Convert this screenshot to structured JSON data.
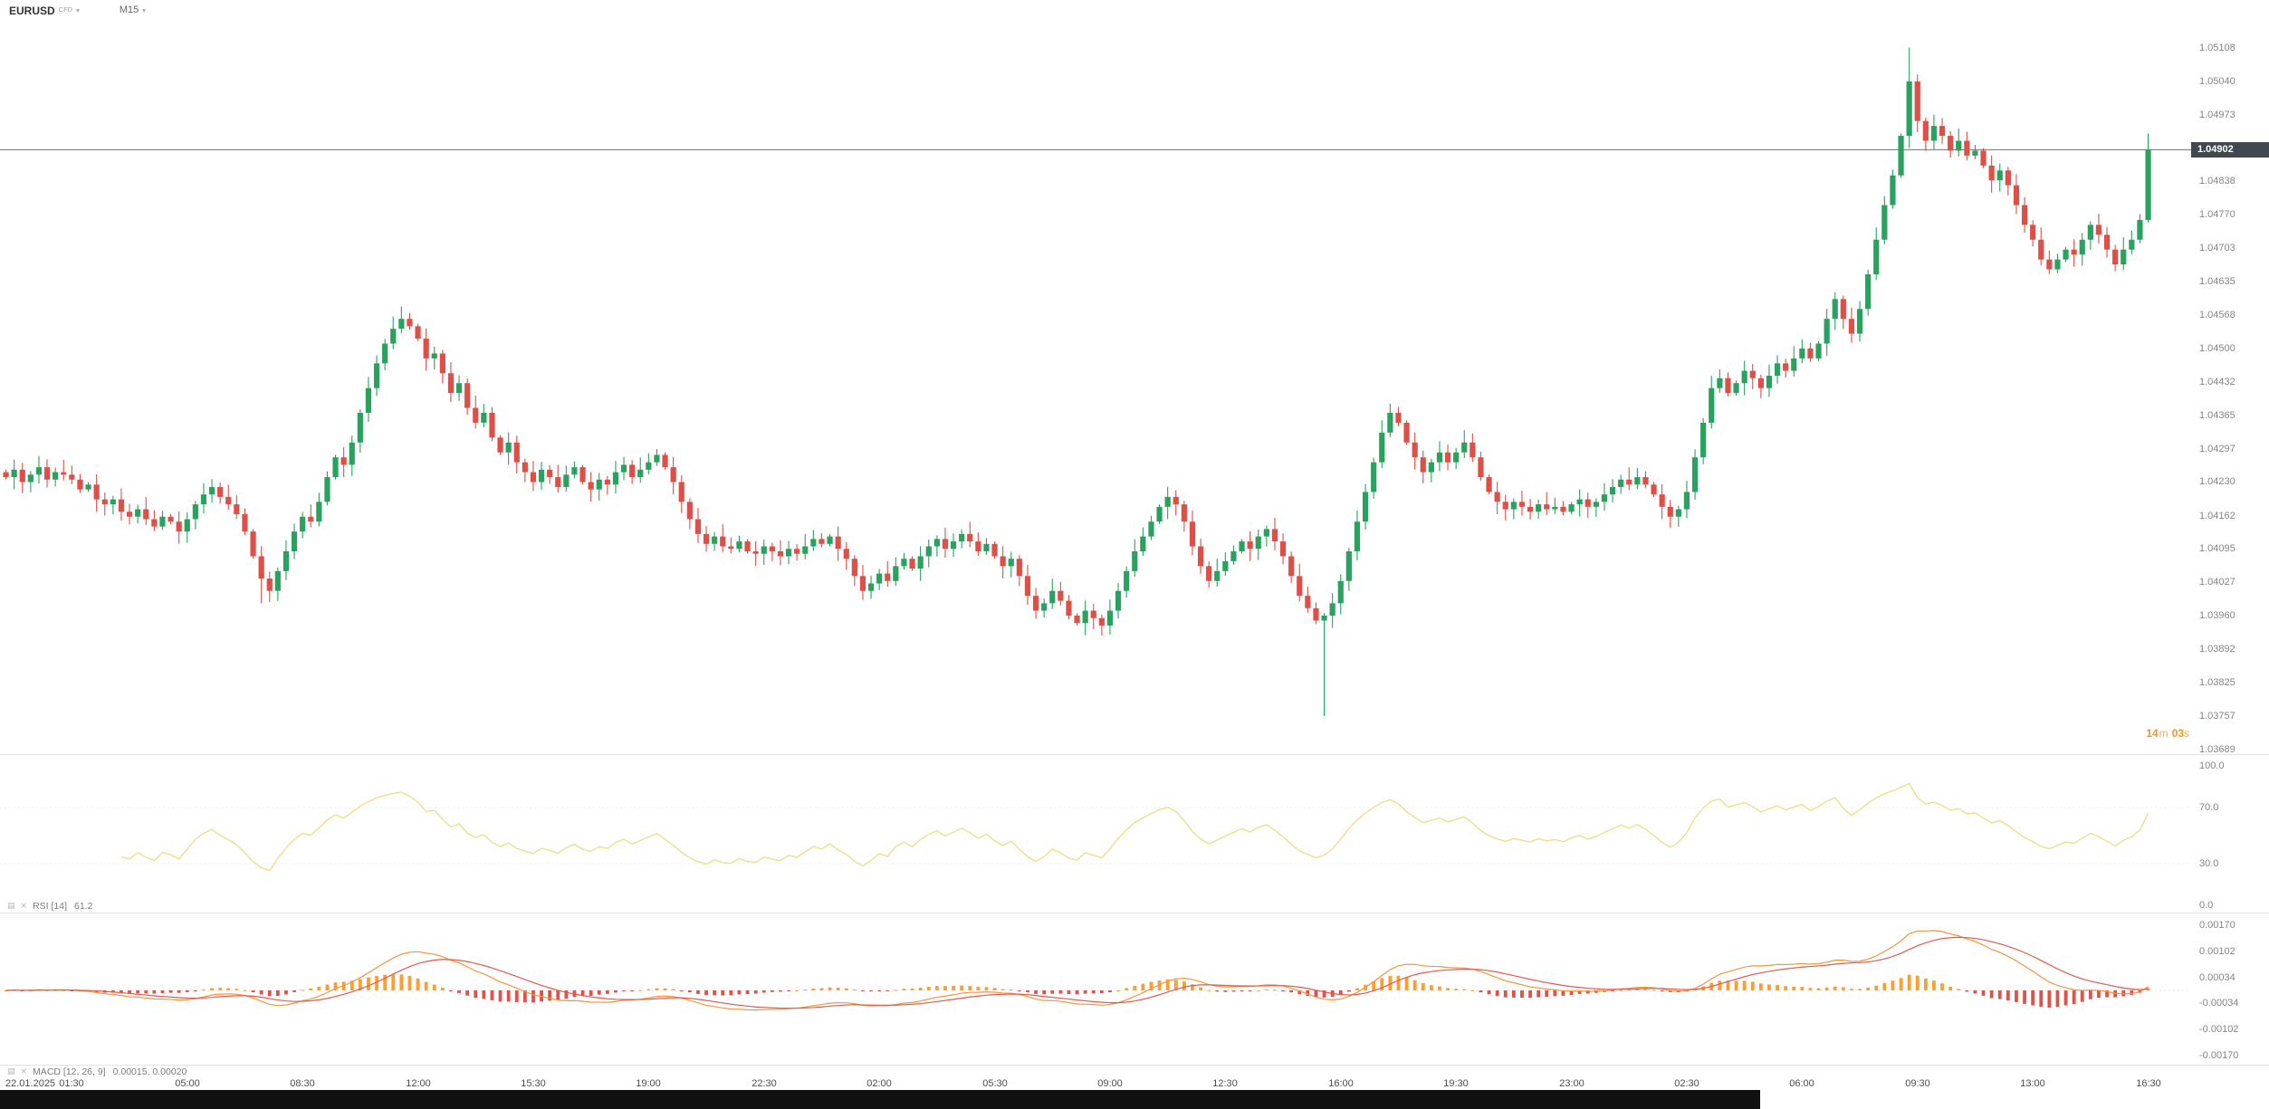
{
  "header": {
    "symbol": "EURUSD",
    "instrument_type": "CFD",
    "timeframe": "M15",
    "countdown": {
      "minutes": "14",
      "min_unit": "m",
      "seconds": "03",
      "sec_unit": "s"
    }
  },
  "colors": {
    "bull": "#2aa25f",
    "bear": "#e04f47",
    "rsi_line": "#ebe18b",
    "macd_line": "#f5953d",
    "signal_line": "#e25a4e",
    "hist_pos": "#ff9d2e",
    "hist_neg": "#e0514a",
    "price_line": "#6b7178",
    "tag_bg": "#40474e",
    "countdown": "#f7941d"
  },
  "indicators": {
    "rsi": {
      "label": "RSI [14]",
      "value": "61.2",
      "period": 14
    },
    "macd": {
      "label": "MACD [12, 26, 9]",
      "value": "0.00015, 0.00020",
      "params": [
        12,
        26,
        9
      ]
    }
  },
  "axes": {
    "price_labels": [
      "1.05108",
      "1.05040",
      "1.04973",
      "1.04838",
      "1.04770",
      "1.04703",
      "1.04635",
      "1.04568",
      "1.04500",
      "1.04432",
      "1.04365",
      "1.04297",
      "1.04230",
      "1.04162",
      "1.04095",
      "1.04027",
      "1.03960",
      "1.03892",
      "1.03825",
      "1.03757",
      "1.03689"
    ],
    "rsi_labels": [
      {
        "text": "100.0",
        "v": 100
      },
      {
        "text": "70.0",
        "v": 70
      },
      {
        "text": "30.0",
        "v": 30
      },
      {
        "text": "0.0",
        "v": 0
      }
    ],
    "macd_labels": [
      {
        "text": "0.00170",
        "v": 0.0017
      },
      {
        "text": "0.00102",
        "v": 0.00102
      },
      {
        "text": "0.00034",
        "v": 0.00034
      },
      {
        "text": "-0.00034",
        "v": -0.00034
      },
      {
        "text": "-0.00102",
        "v": -0.00102
      },
      {
        "text": "-0.00170",
        "v": -0.0017
      }
    ]
  },
  "chart_data": {
    "type": "candlestick",
    "symbol": "EURUSD",
    "timeframe": "M15",
    "current_price": 1.04902,
    "current_price_label": "1.04902",
    "price_axis_range": [
      1.0368,
      1.05168
    ],
    "rsi_range": [
      0,
      100
    ],
    "macd_axis_range": [
      -0.0019,
      0.0019
    ],
    "open_first": 1.0425,
    "closes": [
      1.0424,
      1.04255,
      1.0423,
      1.04245,
      1.0426,
      1.04235,
      1.0425,
      1.04245,
      1.04235,
      1.04215,
      1.04225,
      1.04195,
      1.04185,
      1.04195,
      1.0417,
      1.0416,
      1.04175,
      1.04155,
      1.0414,
      1.0416,
      1.0415,
      1.0413,
      1.04155,
      1.04185,
      1.04205,
      1.0422,
      1.042,
      1.04185,
      1.04165,
      1.0413,
      1.0408,
      1.04035,
      1.0401,
      1.0405,
      1.0409,
      1.0413,
      1.0416,
      1.0415,
      1.0419,
      1.0424,
      1.0428,
      1.04265,
      1.0431,
      1.0437,
      1.0442,
      1.0447,
      1.0451,
      1.0454,
      1.0456,
      1.04545,
      1.0452,
      1.0448,
      1.0449,
      1.0445,
      1.0441,
      1.0443,
      1.0438,
      1.0435,
      1.0437,
      1.0432,
      1.0429,
      1.0431,
      1.0427,
      1.0425,
      1.0423,
      1.04255,
      1.0424,
      1.0422,
      1.04245,
      1.0426,
      1.0423,
      1.04215,
      1.04235,
      1.04225,
      1.0425,
      1.04265,
      1.0424,
      1.04255,
      1.0427,
      1.04285,
      1.0426,
      1.0423,
      1.0419,
      1.04155,
      1.04125,
      1.04105,
      1.0412,
      1.041,
      1.04095,
      1.0411,
      1.0409,
      1.04085,
      1.041,
      1.0409,
      1.0408,
      1.04095,
      1.04085,
      1.041,
      1.04115,
      1.04105,
      1.0412,
      1.04095,
      1.04075,
      1.0404,
      1.0401,
      1.04025,
      1.04045,
      1.0403,
      1.0406,
      1.04075,
      1.04055,
      1.0408,
      1.041,
      1.04115,
      1.04095,
      1.0411,
      1.04125,
      1.0411,
      1.0409,
      1.04105,
      1.0408,
      1.0406,
      1.04075,
      1.0404,
      1.04,
      1.0397,
      1.03985,
      1.0401,
      1.0399,
      1.0396,
      1.03945,
      1.0397,
      1.03955,
      1.0394,
      1.0397,
      1.0401,
      1.0405,
      1.0409,
      1.0412,
      1.0415,
      1.0418,
      1.042,
      1.04185,
      1.0415,
      1.041,
      1.0406,
      1.0403,
      1.0405,
      1.0407,
      1.0409,
      1.0411,
      1.04095,
      1.0412,
      1.04135,
      1.0411,
      1.0408,
      1.0404,
      1.04,
      1.03975,
      1.0395,
      1.0396,
      1.03985,
      1.0403,
      1.0409,
      1.0415,
      1.0421,
      1.0427,
      1.0433,
      1.0437,
      1.0435,
      1.0431,
      1.0428,
      1.0425,
      1.0427,
      1.0429,
      1.0427,
      1.0429,
      1.0431,
      1.0428,
      1.0424,
      1.0421,
      1.0419,
      1.04175,
      1.0419,
      1.0418,
      1.0417,
      1.04185,
      1.04175,
      1.0418,
      1.0417,
      1.04185,
      1.04195,
      1.0418,
      1.0419,
      1.04205,
      1.0422,
      1.04235,
      1.04225,
      1.0424,
      1.04225,
      1.04205,
      1.0418,
      1.0416,
      1.04175,
      1.0421,
      1.0428,
      1.0435,
      1.0442,
      1.0444,
      1.0441,
      1.0443,
      1.04455,
      1.0444,
      1.0442,
      1.04445,
      1.0447,
      1.04455,
      1.0448,
      1.045,
      1.0448,
      1.0451,
      1.0456,
      1.046,
      1.0456,
      1.0453,
      1.0458,
      1.0465,
      1.0472,
      1.0479,
      1.0485,
      1.0493,
      1.0504,
      1.0496,
      1.0492,
      1.0495,
      1.0493,
      1.049,
      1.0492,
      1.0489,
      1.049,
      1.0487,
      1.0484,
      1.0486,
      1.0483,
      1.0479,
      1.0475,
      1.0472,
      1.0468,
      1.0466,
      1.0468,
      1.047,
      1.0469,
      1.0472,
      1.0475,
      1.0473,
      1.047,
      1.0467,
      1.047,
      1.0472,
      1.0476,
      1.04902
    ],
    "wick_overrides": {
      "31": {
        "low": 1.03985
      },
      "48": {
        "high": 1.04585
      },
      "160": {
        "low": 1.03757
      },
      "231": {
        "high": 1.05108
      },
      "260": {
        "high": 1.04935
      }
    },
    "time_labels": [
      {
        "idx": 2,
        "text": "22.01.2025"
      },
      {
        "idx": 8,
        "text": "01:30"
      },
      {
        "idx": 22,
        "text": "05:00"
      },
      {
        "idx": 36,
        "text": "08:30"
      },
      {
        "idx": 50,
        "text": "12:00"
      },
      {
        "idx": 64,
        "text": "15:30"
      },
      {
        "idx": 78,
        "text": "19:00"
      },
      {
        "idx": 92,
        "text": "22:30"
      },
      {
        "idx": 106,
        "text": "02:00"
      },
      {
        "idx": 120,
        "text": "05:30"
      },
      {
        "idx": 134,
        "text": "09:00"
      },
      {
        "idx": 148,
        "text": "12:30"
      },
      {
        "idx": 162,
        "text": "16:00"
      },
      {
        "idx": 176,
        "text": "19:30"
      },
      {
        "idx": 190,
        "text": "23:00"
      },
      {
        "idx": 204,
        "text": "02:30"
      },
      {
        "idx": 218,
        "text": "06:00"
      },
      {
        "idx": 232,
        "text": "09:30"
      },
      {
        "idx": 246,
        "text": "13:00"
      },
      {
        "idx": 260,
        "text": "16:30"
      }
    ]
  }
}
